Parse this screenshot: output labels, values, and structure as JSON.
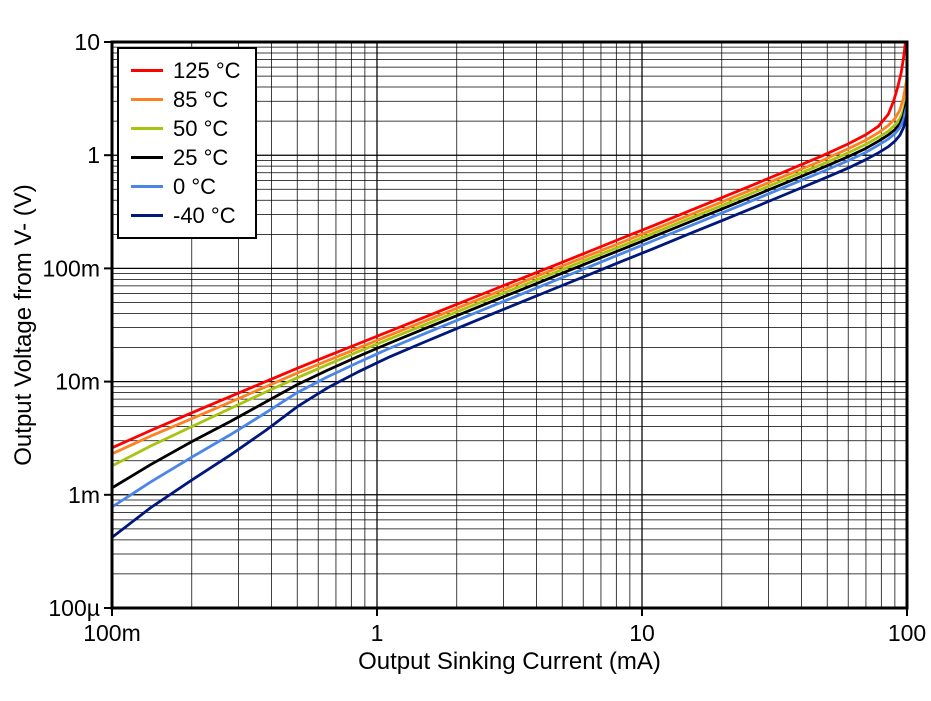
{
  "chart_data": {
    "type": "line",
    "title": "",
    "xlabel": "Output Sinking Current (mA)",
    "ylabel": "Output Voltage from V- (V)",
    "x_scale": "log",
    "y_scale": "log",
    "xlim": [
      0.1,
      100
    ],
    "ylim": [
      0.0001,
      10
    ],
    "grid": "major+minor",
    "legend_position": "top-left",
    "frame_color": "#000000",
    "grid_color": "#000000",
    "x_ticks": [
      {
        "value": 0.1,
        "label": "100m"
      },
      {
        "value": 1,
        "label": "1"
      },
      {
        "value": 10,
        "label": "10"
      },
      {
        "value": 100,
        "label": "100"
      }
    ],
    "y_ticks": [
      {
        "value": 10,
        "label": "10"
      },
      {
        "value": 1,
        "label": "1"
      },
      {
        "value": 0.1,
        "label": "100m"
      },
      {
        "value": 0.01,
        "label": "10m"
      },
      {
        "value": 0.001,
        "label": "1m"
      },
      {
        "value": 0.0001,
        "label": "100µ"
      }
    ],
    "series": [
      {
        "name": "125 °C",
        "color": "#FF0000",
        "points": [
          [
            0.1,
            0.0026
          ],
          [
            0.14,
            0.0037
          ],
          [
            0.2,
            0.0053
          ],
          [
            0.28,
            0.0074
          ],
          [
            0.38,
            0.01
          ],
          [
            0.5,
            0.0131
          ],
          [
            0.65,
            0.0168
          ],
          [
            0.85,
            0.0216
          ],
          [
            1.1,
            0.0275
          ],
          [
            1.5,
            0.0368
          ],
          [
            2,
            0.0482
          ],
          [
            2.7,
            0.0638
          ],
          [
            3.6,
            0.0835
          ],
          [
            4.8,
            0.109
          ],
          [
            6.5,
            0.145
          ],
          [
            8.5,
            0.187
          ],
          [
            11,
            0.238
          ],
          [
            15,
            0.32
          ],
          [
            20,
            0.421
          ],
          [
            27,
            0.562
          ],
          [
            36,
            0.745
          ],
          [
            48,
            0.99
          ],
          [
            60,
            1.26
          ],
          [
            70,
            1.52
          ],
          [
            78,
            1.8
          ],
          [
            85,
            2.3
          ],
          [
            89,
            3.0
          ],
          [
            92,
            3.9
          ],
          [
            95,
            5.3
          ],
          [
            97,
            7.2
          ],
          [
            99,
            10.6
          ]
        ]
      },
      {
        "name": "85 °C",
        "color": "#FF8021",
        "points": [
          [
            0.1,
            0.0023
          ],
          [
            0.14,
            0.0033
          ],
          [
            0.2,
            0.0047
          ],
          [
            0.28,
            0.0066
          ],
          [
            0.38,
            0.009
          ],
          [
            0.5,
            0.0119
          ],
          [
            0.65,
            0.0153
          ],
          [
            0.85,
            0.0198
          ],
          [
            1.1,
            0.0253
          ],
          [
            1.5,
            0.0339
          ],
          [
            2,
            0.0444
          ],
          [
            2.7,
            0.0589
          ],
          [
            3.6,
            0.0771
          ],
          [
            4.8,
            0.101
          ],
          [
            6.5,
            0.134
          ],
          [
            8.5,
            0.172
          ],
          [
            11,
            0.219
          ],
          [
            15,
            0.294
          ],
          [
            20,
            0.386
          ],
          [
            27,
            0.515
          ],
          [
            36,
            0.682
          ],
          [
            48,
            0.9
          ],
          [
            60,
            1.14
          ],
          [
            70,
            1.36
          ],
          [
            78,
            1.58
          ],
          [
            85,
            1.83
          ],
          [
            90,
            2.1
          ],
          [
            94,
            2.5
          ],
          [
            97,
            3.2
          ],
          [
            100,
            4.9
          ]
        ]
      },
      {
        "name": "50 °C",
        "color": "#A8C40F",
        "points": [
          [
            0.1,
            0.0018
          ],
          [
            0.14,
            0.0027
          ],
          [
            0.2,
            0.004
          ],
          [
            0.28,
            0.0058
          ],
          [
            0.38,
            0.0081
          ],
          [
            0.5,
            0.0108
          ],
          [
            0.65,
            0.0141
          ],
          [
            0.85,
            0.0184
          ],
          [
            1.1,
            0.0235
          ],
          [
            1.5,
            0.0315
          ],
          [
            2,
            0.0413
          ],
          [
            2.7,
            0.0548
          ],
          [
            3.6,
            0.0717
          ],
          [
            4.8,
            0.094
          ],
          [
            6.5,
            0.125
          ],
          [
            8.5,
            0.16
          ],
          [
            11,
            0.204
          ],
          [
            15,
            0.274
          ],
          [
            20,
            0.359
          ],
          [
            27,
            0.479
          ],
          [
            36,
            0.634
          ],
          [
            48,
            0.835
          ],
          [
            60,
            1.05
          ],
          [
            70,
            1.25
          ],
          [
            78,
            1.44
          ],
          [
            85,
            1.63
          ],
          [
            90,
            1.85
          ],
          [
            94,
            2.1
          ],
          [
            97,
            2.5
          ],
          [
            100,
            3.4
          ]
        ]
      },
      {
        "name": "25 °C",
        "color": "#000000",
        "points": [
          [
            0.1,
            0.00115
          ],
          [
            0.14,
            0.00185
          ],
          [
            0.2,
            0.00295
          ],
          [
            0.28,
            0.00445
          ],
          [
            0.38,
            0.0066
          ],
          [
            0.5,
            0.0094
          ],
          [
            0.65,
            0.0126
          ],
          [
            0.85,
            0.0167
          ],
          [
            1.1,
            0.0216
          ],
          [
            1.5,
            0.0291
          ],
          [
            2,
            0.0382
          ],
          [
            2.7,
            0.0508
          ],
          [
            3.6,
            0.0665
          ],
          [
            4.8,
            0.0873
          ],
          [
            6.5,
            0.116
          ],
          [
            8.5,
            0.149
          ],
          [
            11,
            0.19
          ],
          [
            15,
            0.255
          ],
          [
            20,
            0.334
          ],
          [
            27,
            0.445
          ],
          [
            36,
            0.588
          ],
          [
            48,
            0.775
          ],
          [
            60,
            0.97
          ],
          [
            70,
            1.15
          ],
          [
            78,
            1.33
          ],
          [
            85,
            1.51
          ],
          [
            90,
            1.68
          ],
          [
            94,
            1.9
          ],
          [
            97,
            2.25
          ],
          [
            100,
            3.1
          ]
        ]
      },
      {
        "name": "0 °C",
        "color": "#4A86E8",
        "points": [
          [
            0.1,
            0.00078
          ],
          [
            0.14,
            0.0013
          ],
          [
            0.2,
            0.00215
          ],
          [
            0.28,
            0.0034
          ],
          [
            0.38,
            0.0053
          ],
          [
            0.5,
            0.008
          ],
          [
            0.65,
            0.011
          ],
          [
            0.85,
            0.0148
          ],
          [
            1.1,
            0.0194
          ],
          [
            1.5,
            0.0263
          ],
          [
            2,
            0.0347
          ],
          [
            2.7,
            0.0462
          ],
          [
            3.6,
            0.0607
          ],
          [
            4.8,
            0.0798
          ],
          [
            6.5,
            0.106
          ],
          [
            8.5,
            0.137
          ],
          [
            11,
            0.175
          ],
          [
            15,
            0.235
          ],
          [
            20,
            0.308
          ],
          [
            27,
            0.411
          ],
          [
            36,
            0.543
          ],
          [
            48,
            0.716
          ],
          [
            60,
            0.895
          ],
          [
            70,
            1.06
          ],
          [
            78,
            1.23
          ],
          [
            85,
            1.39
          ],
          [
            90,
            1.55
          ],
          [
            94,
            1.75
          ],
          [
            97,
            2.05
          ],
          [
            100,
            2.8
          ]
        ]
      },
      {
        "name": "-40 °C",
        "color": "#00187C",
        "points": [
          [
            0.1,
            0.00042
          ],
          [
            0.14,
            0.00077
          ],
          [
            0.2,
            0.00135
          ],
          [
            0.28,
            0.00225
          ],
          [
            0.38,
            0.0037
          ],
          [
            0.5,
            0.006
          ],
          [
            0.65,
            0.0088
          ],
          [
            0.85,
            0.0122
          ],
          [
            1.1,
            0.0163
          ],
          [
            1.5,
            0.0222
          ],
          [
            2,
            0.0294
          ],
          [
            2.7,
            0.0393
          ],
          [
            3.6,
            0.0517
          ],
          [
            4.8,
            0.068
          ],
          [
            6.5,
            0.0905
          ],
          [
            8.5,
            0.117
          ],
          [
            11,
            0.149
          ],
          [
            15,
            0.201
          ],
          [
            20,
            0.264
          ],
          [
            27,
            0.352
          ],
          [
            36,
            0.466
          ],
          [
            48,
            0.615
          ],
          [
            60,
            0.77
          ],
          [
            70,
            0.915
          ],
          [
            78,
            1.05
          ],
          [
            85,
            1.19
          ],
          [
            90,
            1.33
          ],
          [
            94,
            1.5
          ],
          [
            97,
            1.75
          ],
          [
            100,
            2.3
          ]
        ]
      }
    ]
  }
}
